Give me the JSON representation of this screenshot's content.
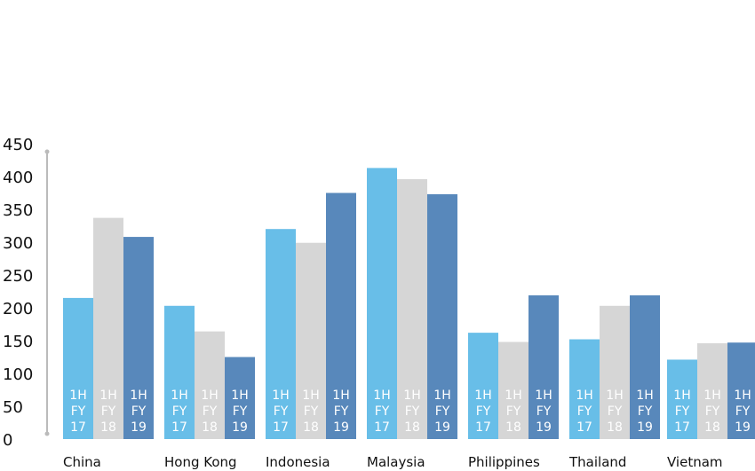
{
  "chart_data": {
    "type": "bar",
    "categories": [
      "China",
      "Hong Kong",
      "Indonesia",
      "Malaysia",
      "Philippines",
      "Thailand",
      "Vietnam"
    ],
    "series": [
      {
        "name": "1H FY 17",
        "label_lines": [
          "1H",
          "FY",
          "17"
        ],
        "color": "#5bb8e6",
        "values": [
          215,
          203,
          320,
          413,
          162,
          152,
          121
        ]
      },
      {
        "name": "1H FY 18",
        "label_lines": [
          "1H",
          "FY",
          "18"
        ],
        "color": "#d4d4d4",
        "values": [
          337,
          164,
          299,
          396,
          148,
          203,
          146
        ]
      },
      {
        "name": "1H FY 19",
        "label_lines": [
          "1H",
          "FY",
          "19"
        ],
        "color": "#4a7eb5",
        "values": [
          308,
          125,
          375,
          373,
          219,
          219,
          147
        ]
      }
    ],
    "yticks": [
      0,
      50,
      100,
      150,
      200,
      250,
      300,
      350,
      400,
      450
    ],
    "ylim": [
      0,
      450
    ],
    "title": "",
    "xlabel": "",
    "ylabel": "",
    "grid": false,
    "legend": "none"
  }
}
